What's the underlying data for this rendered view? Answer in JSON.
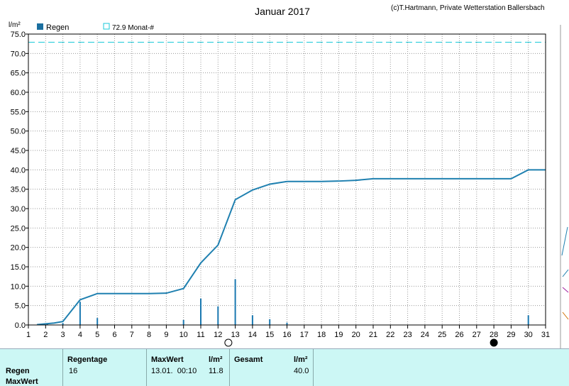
{
  "title": "Januar 2017",
  "credit": "(c)T.Hartmann, Private Wetterstation Ballersbach",
  "y_unit": "l/m²",
  "legend": [
    {
      "label": "Regen",
      "color": "#1a6fa0",
      "style": "filled-square"
    },
    {
      "label": "72.9 Monat-#",
      "color": "#19c9d9",
      "style": "outline-square"
    }
  ],
  "colors": {
    "line": "#1f80b0",
    "bars": "#1a78b0",
    "reference": "#19c9d9",
    "grid": "#888888",
    "table_bg": "#ccf7f5"
  },
  "markers": [
    {
      "day": 12.6,
      "icon": "full-moon-icon"
    },
    {
      "day": 28,
      "icon": "new-moon-icon"
    }
  ],
  "chart_data": {
    "type": "bar+line",
    "ylim": [
      0,
      75
    ],
    "xlim": [
      1,
      31
    ],
    "yticks": [
      "0.0",
      "5.0",
      "10.0",
      "15.0",
      "20.0",
      "25.0",
      "30.0",
      "35.0",
      "40.0",
      "45.0",
      "50.0",
      "55.0",
      "60.0",
      "65.0",
      "70.0",
      "75.0"
    ],
    "xticks": [
      "1",
      "2",
      "3",
      "4",
      "5",
      "6",
      "7",
      "8",
      "9",
      "10",
      "11",
      "12",
      "13",
      "14",
      "15",
      "16",
      "17",
      "18",
      "19",
      "20",
      "21",
      "22",
      "23",
      "24",
      "25",
      "26",
      "27",
      "28",
      "29",
      "30",
      "31"
    ],
    "reference_line": 72.9,
    "bars": {
      "name": "Regen",
      "x": [
        1.5,
        2.1,
        3,
        4,
        5,
        10,
        11,
        12,
        13,
        14,
        15,
        16,
        30
      ],
      "values": [
        0.1,
        0.3,
        0.5,
        6.0,
        1.8,
        1.3,
        6.8,
        4.8,
        11.8,
        2.5,
        1.5,
        0.6,
        2.5
      ]
    },
    "cumulative": {
      "x": [
        1.5,
        2,
        2.5,
        3,
        4,
        5,
        6,
        7,
        8,
        9,
        10,
        11,
        12,
        13,
        14,
        15,
        16,
        17,
        18,
        19,
        20,
        21,
        22,
        23,
        24,
        25,
        26,
        27,
        28,
        29,
        30,
        31
      ],
      "values": [
        0.1,
        0.3,
        0.5,
        0.9,
        6.5,
        8.1,
        8.1,
        8.1,
        8.1,
        8.2,
        9.4,
        16.0,
        20.6,
        32.3,
        34.8,
        36.3,
        37.0,
        37.0,
        37.0,
        37.1,
        37.3,
        37.7,
        37.7,
        37.7,
        37.7,
        37.7,
        37.7,
        37.7,
        37.7,
        37.7,
        40.0,
        40.0
      ]
    }
  },
  "table": {
    "rows": [
      "Regen",
      "MaxWert"
    ],
    "regentage_header": "Regentage",
    "regentage_value": "16",
    "maxwert_header": "MaxWert",
    "maxwert_date": "13.01.  00:10",
    "unit_header": "l/m²",
    "maxwert_value": "11.8",
    "gesamt_header": "Gesamt",
    "gesamt_unit_header": "l/m²",
    "gesamt_value": "40.0"
  }
}
